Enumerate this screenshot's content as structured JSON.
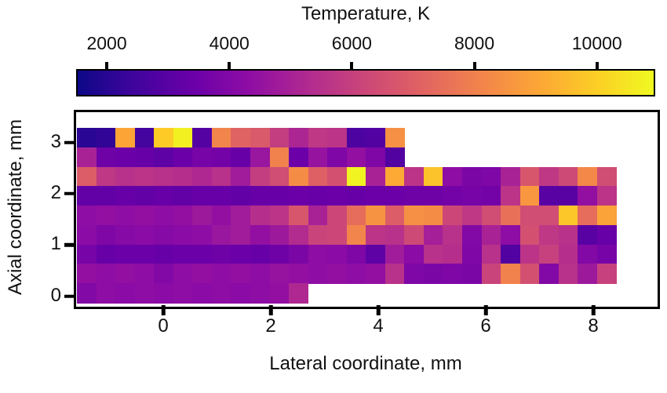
{
  "title": "Temperature, K",
  "colorbar": {
    "vmin": 1500,
    "vmax": 10900,
    "tick_values": [
      2000,
      4000,
      6000,
      8000,
      10000
    ],
    "tick_labels": [
      "2000",
      "4000",
      "6000",
      "8000",
      "10000"
    ]
  },
  "colormap": {
    "name": "plasma",
    "stops": [
      "#0d0887",
      "#41049d",
      "#6a00a8",
      "#8f0da4",
      "#b12a90",
      "#cc4778",
      "#e16462",
      "#f2844b",
      "#fca636",
      "#fcce25",
      "#f0f921"
    ]
  },
  "axes": {
    "x_label": "Lateral coordinate, mm",
    "y_label": "Axial coordinate, mm",
    "x_tick_values": [
      0,
      2,
      4,
      6,
      8
    ],
    "x_tick_labels": [
      "0",
      "2",
      "4",
      "6",
      "8"
    ],
    "y_tick_values": [
      0,
      1,
      2,
      3
    ],
    "y_tick_labels": [
      "0",
      "1",
      "2",
      "3"
    ],
    "x_range_mm": [
      -1.62,
      9.15
    ],
    "y_range_mm": [
      -0.16,
      3.59
    ]
  },
  "chart_data": {
    "type": "heatmap",
    "title": "Temperature, K",
    "xlabel": "Lateral coordinate, mm",
    "ylabel": "Axial coordinate, mm",
    "value_units": "K",
    "vmin": 1500,
    "vmax": 10900,
    "x0_mm": -1.43,
    "dx_mm": 0.358,
    "y_centers_mm": [
      3.0,
      2.625,
      2.25,
      1.875,
      1.5,
      1.125,
      0.75,
      0.375,
      0.0
    ],
    "values": [
      [
        2000,
        2150,
        9000,
        2500,
        9900,
        10700,
        2900,
        8100,
        7100,
        6800,
        5900,
        5100,
        5700,
        5600,
        2700,
        2800,
        8400,
        null,
        null,
        null,
        null,
        null,
        null,
        null,
        null,
        null,
        null,
        null
      ],
      [
        5000,
        3500,
        3400,
        3300,
        3100,
        3400,
        3700,
        3600,
        3300,
        4600,
        8000,
        3400,
        4500,
        3900,
        4400,
        3900,
        2800,
        null,
        null,
        null,
        null,
        null,
        null,
        null,
        null,
        null,
        null,
        null
      ],
      [
        6900,
        5700,
        5500,
        5600,
        5500,
        5400,
        5200,
        5500,
        4800,
        5900,
        6400,
        8300,
        7000,
        6500,
        10800,
        5000,
        9100,
        5600,
        9700,
        4300,
        3800,
        3900,
        5000,
        6700,
        5700,
        6300,
        8200,
        6400
      ],
      [
        3200,
        3200,
        3300,
        3200,
        3300,
        3200,
        3300,
        3300,
        3200,
        3300,
        3300,
        3400,
        3300,
        3400,
        3300,
        3400,
        3400,
        3500,
        3500,
        3600,
        3700,
        3600,
        5600,
        8600,
        3000,
        3000,
        4400,
        5600
      ],
      [
        4300,
        4400,
        4300,
        4400,
        4300,
        4400,
        4700,
        4400,
        4800,
        5400,
        5600,
        6700,
        5000,
        6200,
        7400,
        8500,
        6900,
        8400,
        8300,
        6200,
        5700,
        6400,
        7500,
        6400,
        6400,
        9800,
        7400,
        8900
      ],
      [
        4200,
        3900,
        4100,
        4200,
        4100,
        4200,
        4300,
        4600,
        4800,
        4400,
        4700,
        5300,
        6100,
        6200,
        8100,
        5600,
        5500,
        6300,
        4900,
        5500,
        4000,
        5000,
        4300,
        6500,
        5700,
        5500,
        3000,
        3300
      ],
      [
        3700,
        3300,
        3400,
        3400,
        3300,
        3400,
        3400,
        3500,
        3400,
        3300,
        3500,
        3800,
        4300,
        4200,
        3900,
        3100,
        4800,
        4200,
        5500,
        5400,
        3900,
        5500,
        2800,
        5600,
        6000,
        5400,
        4000,
        3700
      ],
      [
        4400,
        4300,
        4400,
        4300,
        4000,
        4300,
        4400,
        4300,
        4400,
        4300,
        4500,
        4400,
        4300,
        4400,
        4300,
        4400,
        5500,
        3900,
        3800,
        3900,
        3800,
        6100,
        8000,
        6500,
        4000,
        5500,
        4700,
        6000
      ],
      [
        4000,
        4300,
        4200,
        4300,
        4200,
        4300,
        4200,
        4300,
        4200,
        4300,
        4400,
        5200,
        null,
        null,
        null,
        null,
        null,
        null,
        null,
        null,
        null,
        null,
        null,
        null,
        null,
        null,
        null,
        null
      ]
    ]
  }
}
